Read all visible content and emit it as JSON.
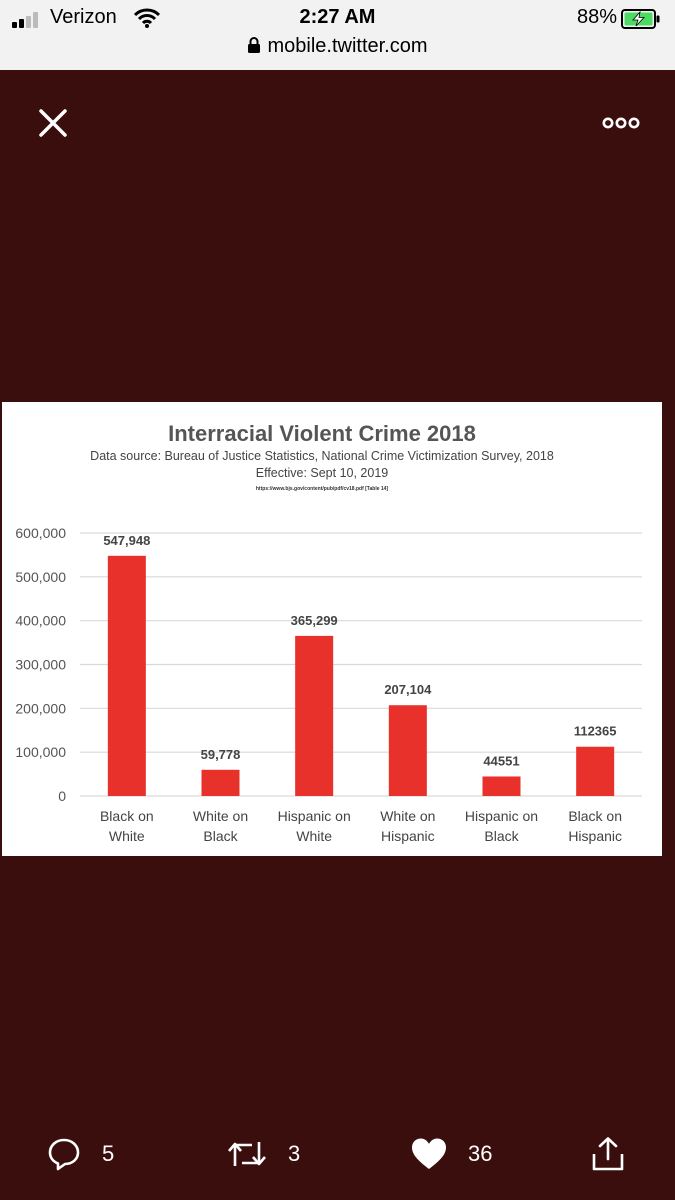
{
  "status_bar": {
    "carrier": "Verizon",
    "time": "2:27 AM",
    "battery": "88%",
    "url": "mobile.twitter.com"
  },
  "viewer": {
    "close_icon": "close-icon",
    "more_icon": "more-horizontal-icon"
  },
  "chart_data": {
    "type": "bar",
    "title": "Interracial Violent Crime 2018",
    "subtitle": "Data source: Bureau of Justice Statistics, National Crime Victimization Survey, 2018",
    "effective": "Effective: Sept 10, 2019",
    "source_url": "https://www.bjs.gov/content/pub/pdf/cv18.pdf [Table 14]",
    "categories": [
      [
        "Black on",
        "White"
      ],
      [
        "White on",
        "Black"
      ],
      [
        "Hispanic on",
        "White"
      ],
      [
        "White on",
        "Hispanic"
      ],
      [
        "Hispanic on",
        "Black"
      ],
      [
        "Black on",
        "Hispanic"
      ]
    ],
    "values": [
      547948,
      59778,
      365299,
      207104,
      44551,
      112365
    ],
    "data_labels": [
      "547,948",
      "59,778",
      "365,299",
      "207,104",
      "44551",
      "112365"
    ],
    "yticks": [
      "0",
      "100,000",
      "200,000",
      "300,000",
      "400,000",
      "500,000",
      "600,000"
    ],
    "ylim": [
      0,
      600000
    ],
    "bar_color": "#e8312a",
    "grid": true,
    "legend": "none"
  },
  "actions": {
    "reply_count": "5",
    "retweet_count": "3",
    "like_count": "36"
  }
}
